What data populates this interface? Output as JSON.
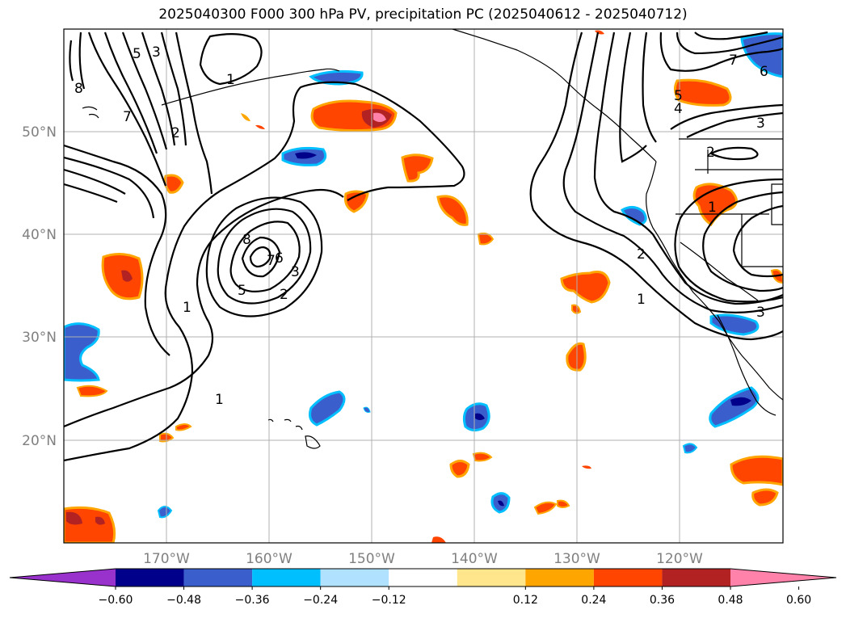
{
  "title": "2025040300 F000 300 hPa PV, precipitation PC (2025040612 - 2025040712)",
  "map": {
    "lon_labels": [
      "170°W",
      "160°W",
      "150°W",
      "140°W",
      "130°W",
      "120°W"
    ],
    "lat_labels": [
      "50°N",
      "40°N",
      "30°N",
      "20°N"
    ],
    "contour_labels": [
      "8",
      "5",
      "6",
      "3",
      "2",
      "7",
      "1",
      "7",
      "8",
      "5",
      "3",
      "2",
      "1",
      "1",
      "7",
      "6",
      "5",
      "4",
      "3",
      "2",
      "1",
      "2",
      "1",
      "3"
    ]
  },
  "colorbar": {
    "ticks": [
      "−0.60",
      "−0.48",
      "−0.36",
      "−0.24",
      "−0.12",
      "0.12",
      "0.24",
      "0.36",
      "0.48",
      "0.60"
    ],
    "colors": [
      "#9932cc",
      "#00008b",
      "#3a5fcd",
      "#00bfff",
      "#b0e2ff",
      "#ffffff",
      "#ffe68c",
      "#ffa500",
      "#ff4500",
      "#b22222",
      "#ff82ab"
    ]
  }
}
